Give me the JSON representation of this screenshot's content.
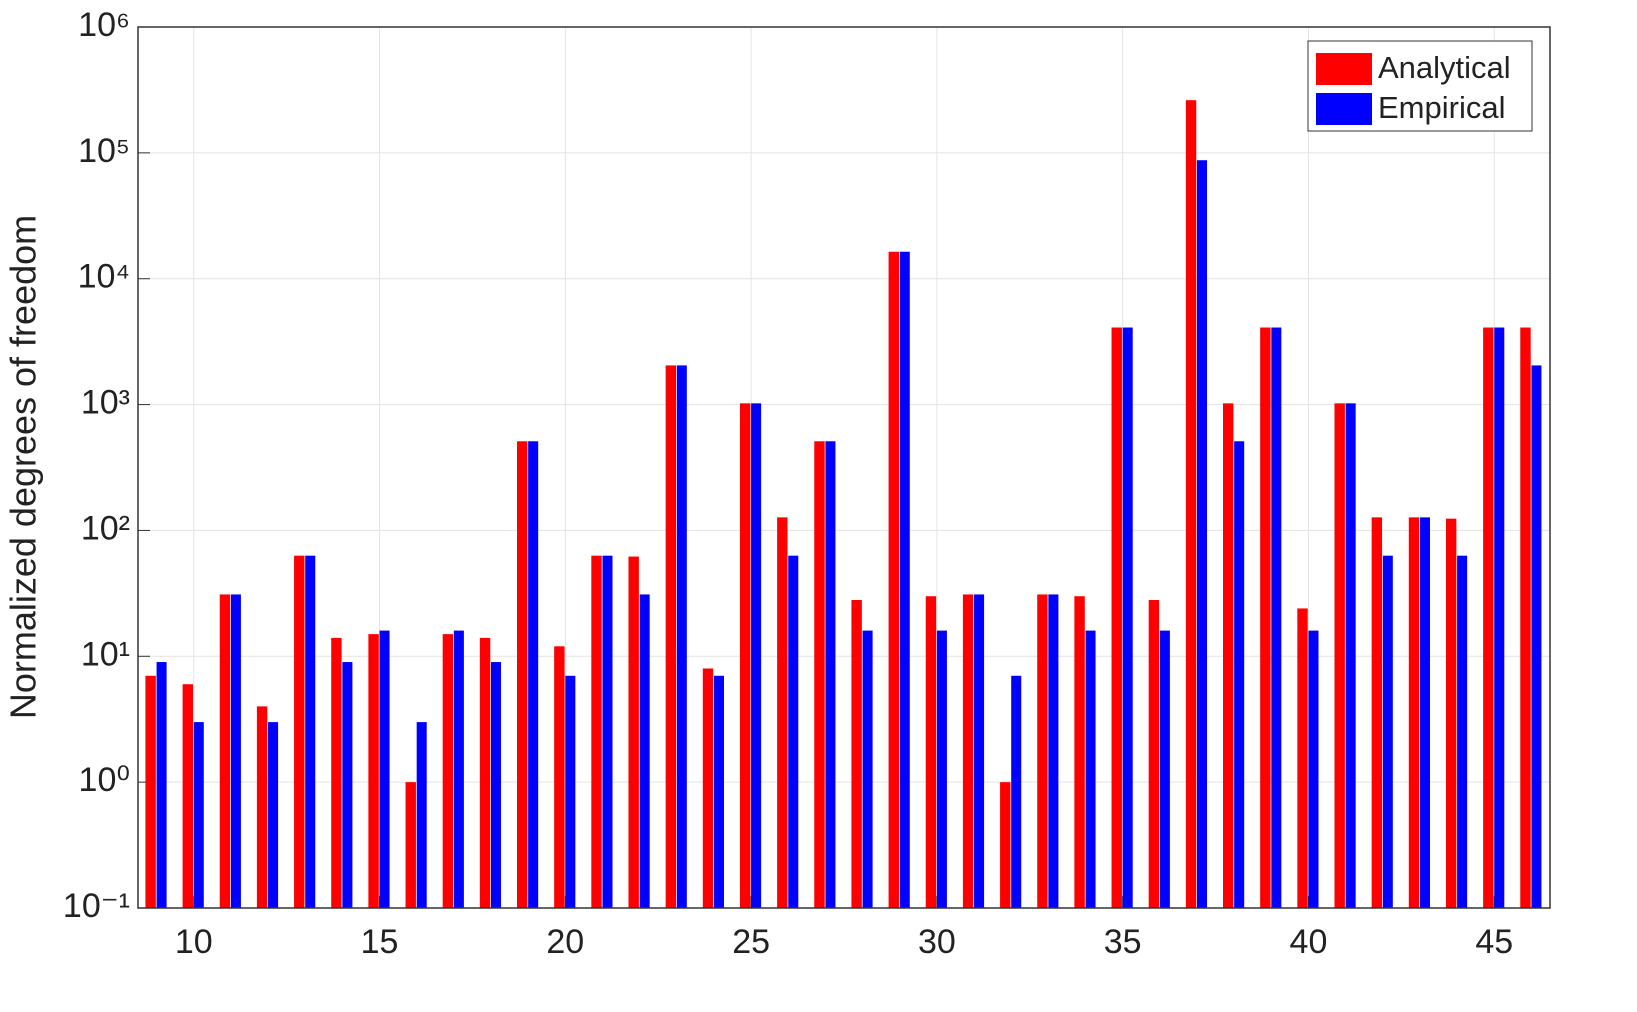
{
  "chart_data": {
    "type": "bar",
    "y_label": "Normalized degrees of freedom",
    "x": [
      9,
      10,
      11,
      12,
      13,
      14,
      15,
      16,
      17,
      18,
      19,
      20,
      21,
      22,
      23,
      24,
      25,
      26,
      27,
      28,
      29,
      30,
      31,
      32,
      33,
      34,
      35,
      36,
      37,
      38,
      39,
      40,
      41,
      42,
      43,
      44,
      45,
      46
    ],
    "series": [
      {
        "name": "Analytical",
        "color": "#ff0000",
        "values": [
          7,
          6,
          31,
          4,
          63,
          14,
          15,
          1,
          15,
          14,
          511,
          12,
          63,
          62,
          2047,
          8,
          1023,
          127,
          511,
          28,
          16383,
          30,
          31,
          1,
          31,
          30,
          4095,
          28,
          262143,
          1023,
          4095,
          24,
          1023,
          127,
          127,
          124,
          4095,
          4095
        ]
      },
      {
        "name": "Empirical",
        "color": "#0000ff",
        "values": [
          9,
          3,
          31,
          3,
          63,
          9,
          16,
          3,
          16,
          9,
          511,
          7,
          63,
          31,
          2047,
          7,
          1023,
          63,
          511,
          16,
          16383,
          16,
          31,
          7,
          31,
          16,
          4095,
          16,
          87381,
          511,
          4095,
          16,
          1023,
          63,
          127,
          63,
          4095,
          2047
        ]
      }
    ],
    "xlim": [
      8.5,
      46.5
    ],
    "xticks": [
      10,
      15,
      20,
      25,
      30,
      35,
      40,
      45
    ],
    "ylim": [
      0.1,
      1000000
    ],
    "yticks": [
      {
        "value": 0.1,
        "label": "10⁻¹"
      },
      {
        "value": 1,
        "label": "10⁰"
      },
      {
        "value": 10,
        "label": "10¹"
      },
      {
        "value": 100,
        "label": "10²"
      },
      {
        "value": 1000,
        "label": "10³"
      },
      {
        "value": 10000,
        "label": "10⁴"
      },
      {
        "value": 100000,
        "label": "10⁵"
      },
      {
        "value": 1000000,
        "label": "10⁶"
      }
    ],
    "y_log": true,
    "grid": true,
    "legend": "northeast"
  }
}
